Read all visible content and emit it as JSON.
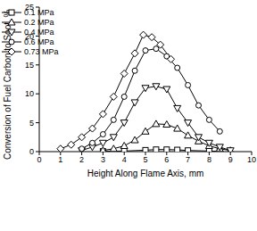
{
  "chart_data": {
    "type": "line",
    "x_label": "Height Along Flame Axis, mm",
    "y_label": "Conversion of Fuel Carbon to Soot, %",
    "xlim": [
      0,
      10
    ],
    "xticks": [
      0,
      1,
      2,
      3,
      4,
      5,
      6,
      7,
      8,
      9,
      10
    ],
    "ylim": [
      0,
      25
    ],
    "yticks": [
      0,
      5,
      10,
      15,
      20,
      25
    ],
    "grid": false,
    "legend": "upper right",
    "series": [
      {
        "name": "0.1 MPa",
        "color": "#000000",
        "marker": "square",
        "line_style": "solid",
        "x": [
          3,
          4,
          5,
          5.5,
          6,
          6.5,
          7,
          8,
          8.5
        ],
        "values": [
          0.05,
          0.1,
          0.25,
          0.35,
          0.35,
          0.3,
          0.2,
          0.1,
          0.05
        ]
      },
      {
        "name": "0.2 MPa",
        "color": "#000000",
        "marker": "triangle",
        "line_style": "solid",
        "x": [
          3,
          3.5,
          4,
          4.5,
          5,
          5.5,
          6,
          6.5,
          7,
          7.5,
          8,
          8.5,
          9
        ],
        "values": [
          0.2,
          0.5,
          1,
          2,
          3.5,
          4.8,
          4.7,
          4,
          2.8,
          1.8,
          1,
          0.5,
          0.2
        ]
      },
      {
        "name": "0.4 MPa",
        "color": "#000000",
        "marker": "triangle-down",
        "line_style": "solid",
        "x": [
          2,
          2.5,
          3,
          3.5,
          4,
          4.5,
          5,
          5.5,
          6,
          6.5,
          7,
          7.5,
          8,
          8.5,
          9
        ],
        "values": [
          0.2,
          0.8,
          1.5,
          2.5,
          5,
          8.5,
          11,
          11.3,
          10.8,
          7.5,
          5,
          2.5,
          1.5,
          0.8,
          0.2
        ]
      },
      {
        "name": "0.6 MPa",
        "color": "#000000",
        "marker": "circle",
        "line_style": "solid",
        "x": [
          2,
          2.5,
          3,
          3.5,
          4,
          4.5,
          5,
          5.5,
          6,
          6.5,
          7,
          7.5,
          8,
          8.5
        ],
        "values": [
          0.5,
          1.5,
          3,
          5.5,
          9.5,
          14,
          17.5,
          17.8,
          16.5,
          14.5,
          11.5,
          8,
          5.5,
          3.5
        ]
      },
      {
        "name": "0.73 MPa",
        "color": "#000000",
        "marker": "diamond",
        "line_style": "solid",
        "x": [
          1,
          1.5,
          2,
          2.5,
          3,
          3.5,
          4,
          4.5,
          4.9,
          5.3,
          5.7,
          6.2
        ],
        "values": [
          0.5,
          1.2,
          2.5,
          4,
          6.5,
          9.5,
          13.5,
          17,
          20.2,
          19.8,
          18.5,
          16
        ]
      }
    ]
  }
}
